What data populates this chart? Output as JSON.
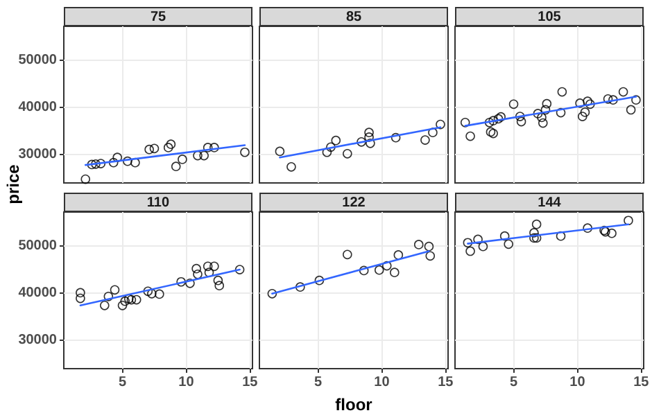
{
  "chart_data": [
    {
      "type": "scatter",
      "title": "75",
      "xlim": [
        0.4,
        15.2
      ],
      "ylim": [
        24000,
        57200
      ],
      "xticks": [
        5,
        10,
        15
      ],
      "yticks": [
        30000,
        40000,
        50000
      ],
      "grid": true,
      "tick_labels": "y",
      "series": [
        {
          "type": "scatter",
          "color": "#000000",
          "marker": "circle",
          "x": [
            2.1,
            2.6,
            2.9,
            3.3,
            4.3,
            4.6,
            5.4,
            6.0,
            7.1,
            7.5,
            8.6,
            8.8,
            9.2,
            9.7,
            10.9,
            11.4,
            11.7,
            12.2,
            14.6
          ],
          "values": [
            24800,
            27900,
            28000,
            28100,
            28300,
            29400,
            28600,
            28300,
            31100,
            31300,
            31500,
            32200,
            27500,
            29000,
            29800,
            29800,
            31500,
            31500,
            30500
          ]
        },
        {
          "type": "line",
          "color": "#3366ff",
          "marker": "none",
          "x": [
            2.1,
            14.6
          ],
          "values": [
            27800,
            32000
          ]
        }
      ]
    },
    {
      "type": "scatter",
      "title": "85",
      "xlim": [
        0.4,
        15.2
      ],
      "ylim": [
        24000,
        57200
      ],
      "xticks": [
        5,
        10,
        15
      ],
      "yticks": [
        30000,
        40000,
        50000
      ],
      "grid": true,
      "tick_labels": false,
      "series": [
        {
          "type": "scatter",
          "color": "#000000",
          "marker": "circle",
          "x": [
            2.0,
            2.9,
            5.7,
            6.0,
            6.4,
            7.3,
            8.4,
            9.0,
            9.0,
            9.1,
            11.1,
            13.4,
            14.0,
            14.6
          ],
          "values": [
            30700,
            27400,
            30500,
            31600,
            33000,
            30200,
            32700,
            34700,
            33700,
            32400,
            33600,
            33100,
            34700,
            36400
          ]
        },
        {
          "type": "line",
          "color": "#3366ff",
          "marker": "none",
          "x": [
            2.0,
            14.6
          ],
          "values": [
            29400,
            35800
          ]
        }
      ]
    },
    {
      "type": "scatter",
      "title": "105",
      "xlim": [
        0.4,
        15.2
      ],
      "ylim": [
        24000,
        57200
      ],
      "xticks": [
        5,
        10,
        15
      ],
      "yticks": [
        30000,
        40000,
        50000
      ],
      "grid": true,
      "tick_labels": false,
      "series": [
        {
          "type": "scatter",
          "color": "#000000",
          "marker": "circle",
          "x": [
            1.2,
            1.6,
            3.1,
            3.4,
            3.2,
            3.4,
            3.8,
            4.0,
            5.0,
            5.5,
            5.6,
            6.9,
            7.2,
            7.3,
            7.5,
            7.6,
            8.7,
            8.8,
            10.2,
            10.4,
            10.6,
            10.8,
            11.0,
            12.4,
            12.8,
            13.6,
            14.2,
            14.6
          ],
          "values": [
            36800,
            33900,
            36800,
            37200,
            34800,
            34500,
            37600,
            38000,
            40700,
            38100,
            37000,
            38700,
            37900,
            36700,
            39500,
            40800,
            38900,
            43300,
            40900,
            38100,
            39000,
            41300,
            40700,
            41800,
            41600,
            43300,
            39500,
            41600
          ]
        },
        {
          "type": "line",
          "color": "#3366ff",
          "marker": "none",
          "x": [
            1.2,
            14.6
          ],
          "values": [
            36100,
            42300
          ]
        }
      ]
    },
    {
      "type": "scatter",
      "title": "110",
      "ylabel": "price",
      "xlim": [
        0.4,
        15.2
      ],
      "ylim": [
        24000,
        57200
      ],
      "xticks": [
        5,
        10,
        15
      ],
      "yticks": [
        30000,
        40000,
        50000
      ],
      "grid": true,
      "series": [
        {
          "type": "scatter",
          "color": "#000000",
          "marker": "circle",
          "x": [
            1.7,
            1.7,
            3.6,
            3.9,
            4.4,
            5.0,
            5.2,
            5.5,
            5.7,
            6.1,
            7.0,
            7.3,
            7.9,
            9.6,
            10.3,
            10.8,
            10.9,
            11.7,
            12.2,
            11.8,
            12.5,
            12.6,
            14.2
          ],
          "values": [
            40100,
            38900,
            37400,
            39300,
            40700,
            37400,
            38300,
            38800,
            38600,
            38600,
            40400,
            39900,
            39800,
            42400,
            42100,
            45200,
            44000,
            45700,
            45700,
            44400,
            42700,
            41600,
            45000
          ]
        },
        {
          "type": "line",
          "color": "#3366ff",
          "marker": "none",
          "x": [
            1.7,
            14.2
          ],
          "values": [
            37400,
            45000
          ]
        }
      ]
    },
    {
      "type": "scatter",
      "title": "122",
      "xlabel": "floor",
      "xlim": [
        0.4,
        15.2
      ],
      "ylim": [
        24000,
        57200
      ],
      "xticks": [
        5,
        10,
        15
      ],
      "yticks": [
        30000,
        40000,
        50000
      ],
      "grid": true,
      "tick_labels": "x",
      "series": [
        {
          "type": "scatter",
          "color": "#000000",
          "marker": "circle",
          "x": [
            1.4,
            3.6,
            5.1,
            7.3,
            8.6,
            9.8,
            10.4,
            11.0,
            11.3,
            12.9,
            13.7,
            13.8
          ],
          "values": [
            39900,
            41300,
            42700,
            48200,
            44800,
            44900,
            45800,
            44400,
            48100,
            50300,
            49900,
            47900
          ]
        },
        {
          "type": "line",
          "color": "#3366ff",
          "marker": "none",
          "x": [
            1.4,
            13.7
          ],
          "values": [
            39900,
            48900
          ]
        }
      ]
    },
    {
      "type": "scatter",
      "title": "144",
      "xlim": [
        0.4,
        15.2
      ],
      "ylim": [
        24000,
        57200
      ],
      "xticks": [
        5,
        10,
        15
      ],
      "yticks": [
        30000,
        40000,
        50000
      ],
      "grid": true,
      "tick_labels": "x",
      "series": [
        {
          "type": "scatter",
          "color": "#000000",
          "marker": "circle",
          "x": [
            1.4,
            1.6,
            2.2,
            2.6,
            4.3,
            4.6,
            6.6,
            6.8,
            6.6,
            6.8,
            8.7,
            10.8,
            12.1,
            12.2,
            12.7,
            14.0
          ],
          "values": [
            50700,
            48900,
            51400,
            49900,
            52100,
            50400,
            52800,
            54600,
            51700,
            51700,
            52100,
            53800,
            53300,
            53000,
            52700,
            55400
          ]
        },
        {
          "type": "line",
          "color": "#3366ff",
          "marker": "none",
          "x": [
            1.4,
            14.0
          ],
          "values": [
            50500,
            54600
          ]
        }
      ]
    }
  ]
}
